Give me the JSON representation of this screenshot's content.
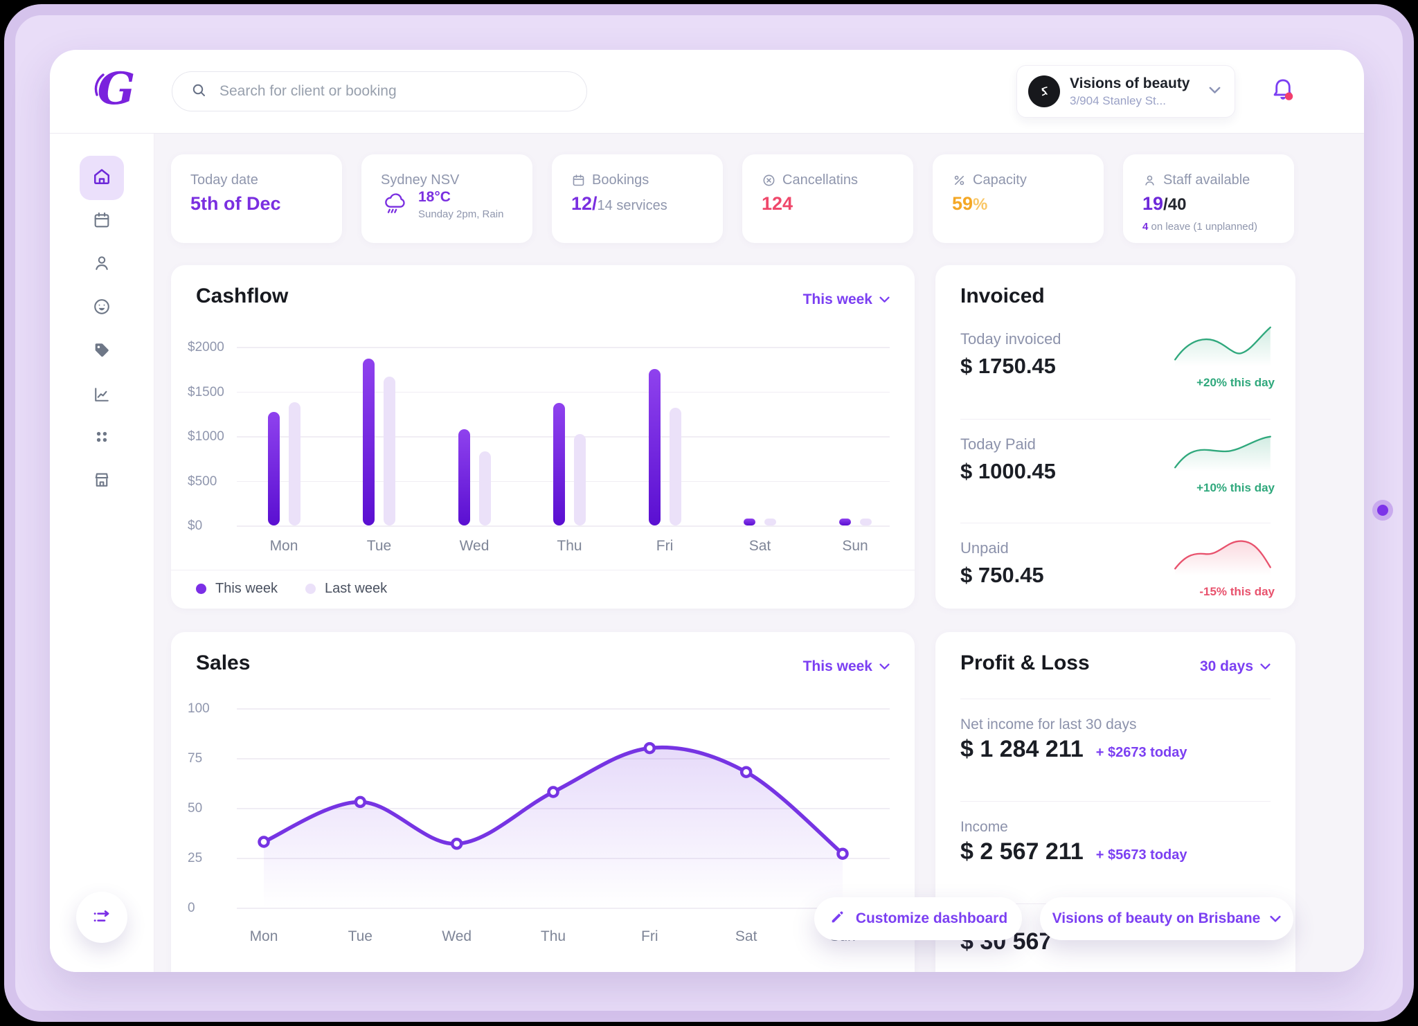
{
  "header": {
    "search_placeholder": "Search for client or booking",
    "account": {
      "name": "Visions of beauty",
      "address": "3/904 Stanley St..."
    }
  },
  "sidebar": {
    "items": [
      {
        "icon": "home-icon",
        "active": true
      },
      {
        "icon": "calendar-icon",
        "active": false
      },
      {
        "icon": "clients-icon",
        "active": false
      },
      {
        "icon": "satisfaction-icon",
        "active": false
      },
      {
        "icon": "tags-icon",
        "active": false
      },
      {
        "icon": "analytics-icon",
        "active": false
      },
      {
        "icon": "apps-icon",
        "active": false
      },
      {
        "icon": "store-icon",
        "active": false
      }
    ]
  },
  "stats": [
    {
      "label": "Today date",
      "value": "5th of Dec",
      "value_color": "#7a2fe0"
    },
    {
      "label": "Sydney NSV",
      "big_icon": "weather-rain-icon",
      "value": "18°C",
      "value_color": "#7a2fe0",
      "sub": "Sunday 2pm, Rain"
    },
    {
      "label": "Bookings",
      "icon": "calendar-icon",
      "value": "12/",
      "value_color": "#7a2fe0",
      "suffix": "14 services",
      "suffix_color": "#8f96ad",
      "suffix_bold": false
    },
    {
      "label": "Cancellatins",
      "icon": "cancel-icon",
      "value": "124",
      "value_color": "#ef486b"
    },
    {
      "label": "Capacity",
      "icon": "percent-icon",
      "value": "59",
      "value_color": "#f4a725",
      "suffix": "%",
      "suffix_color": "#f9c767",
      "suffix_bold": true
    },
    {
      "label": "Staff available",
      "icon": "person-icon",
      "value": "19",
      "value_color": "#6d28d9",
      "suffix": "/40",
      "suffix_color": "#23262e",
      "suffix_bold": true,
      "sub_prefix": "4",
      "sub": " on leave (1 unplanned)",
      "sub_prefix_color": "#7a2fe0"
    }
  ],
  "chart_data": [
    {
      "id": "cashflow",
      "type": "bar",
      "title": "Cashflow",
      "period": "This week",
      "categories": [
        "Mon",
        "Tue",
        "Wed",
        "Thu",
        "Fri",
        "Sat",
        "Sun"
      ],
      "series": [
        {
          "name": "This week",
          "color": "#7b2fe6",
          "values": [
            1270,
            1870,
            1080,
            1370,
            1750,
            60,
            60
          ]
        },
        {
          "name": "Last week",
          "color": "#ebe1f9",
          "values": [
            1380,
            1670,
            830,
            1020,
            1320,
            60,
            60
          ]
        }
      ],
      "ymax": 2000,
      "ytick_labels": [
        "$2000",
        "$1500",
        "$1000",
        "$500",
        "$0"
      ],
      "grid": true,
      "legend_position": "bottom-left"
    },
    {
      "id": "sales",
      "type": "line",
      "title": "Sales",
      "period": "This week",
      "categories": [
        "Mon",
        "Tue",
        "Wed",
        "Thu",
        "Fri",
        "Sat",
        "Sun"
      ],
      "values": [
        33,
        53,
        32,
        58,
        80,
        68,
        27
      ],
      "ymax": 100,
      "ytick_labels": [
        "100",
        "75",
        "50",
        "25",
        "0"
      ],
      "line_color": "#7634e3",
      "grid": true
    }
  ],
  "invoiced": {
    "title": "Invoiced",
    "rows": [
      {
        "label": "Today invoiced",
        "value": "$ 1750.45",
        "delta": "+20% this day",
        "trend": "up"
      },
      {
        "label": "Today Paid",
        "value": "$ 1000.45",
        "delta": "+10% this day",
        "trend": "up"
      },
      {
        "label": "Unpaid",
        "value": "$ 750.45",
        "delta": "-15% this day",
        "trend": "down"
      }
    ],
    "trend_colors": {
      "up": "#2fa87c",
      "down": "#e8526d"
    }
  },
  "profit_loss": {
    "title": "Profit & Loss",
    "period": "30 days",
    "rows": [
      {
        "label": "Net income for last 30 days",
        "value": "$ 1 284 211",
        "delta": "+ $2673 today"
      },
      {
        "label": "Income",
        "value": "$ 2 567 211",
        "delta": "+ $5673 today"
      },
      {
        "label": "",
        "value": "$ 30 567",
        "delta": ""
      }
    ]
  },
  "floating": {
    "customize": "Customize dashboard",
    "location": "Visions of beauty on Brisbane"
  }
}
